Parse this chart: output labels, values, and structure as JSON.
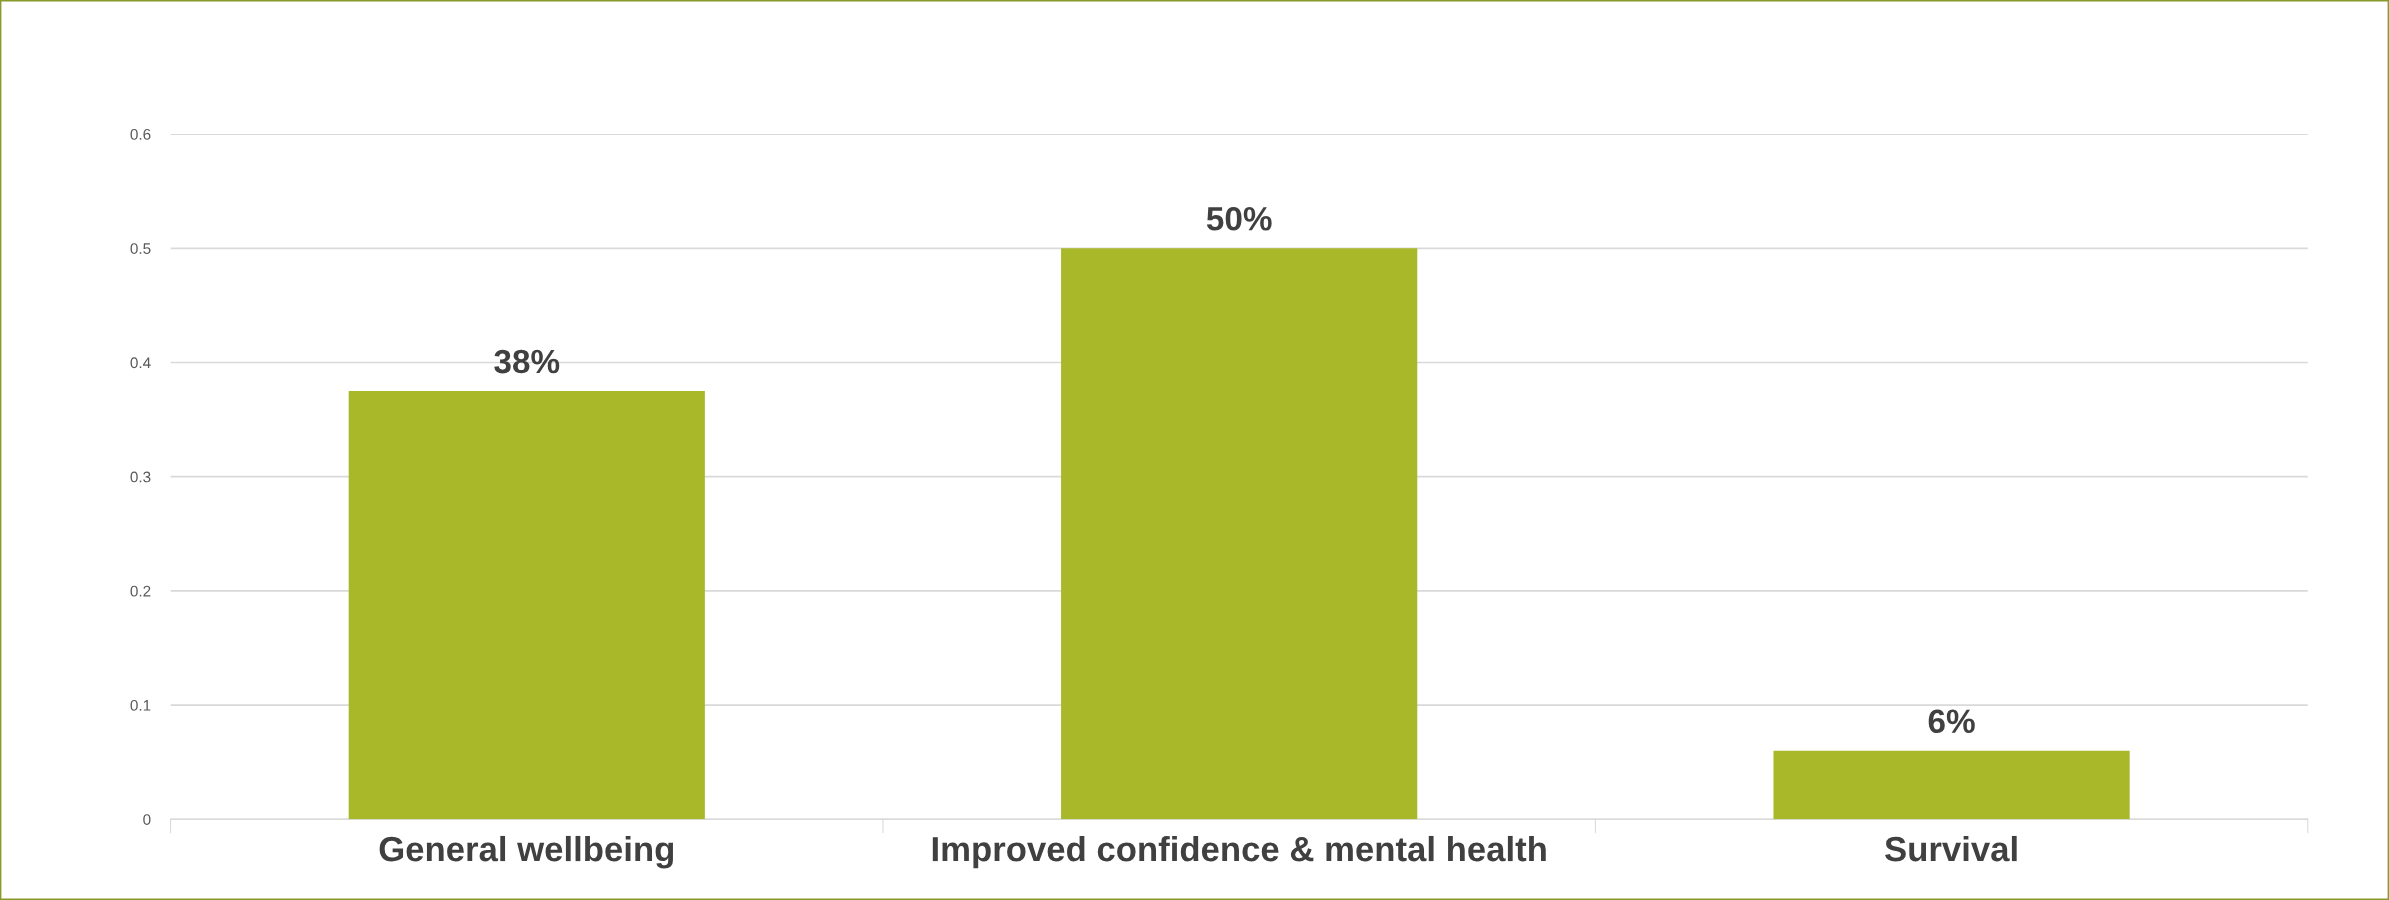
{
  "chart_data": {
    "type": "bar",
    "categories": [
      "General wellbeing",
      "Improved confidence & mental health",
      "Survival"
    ],
    "values": [
      0.375,
      0.5,
      0.06
    ],
    "value_labels": [
      "38%",
      "50%",
      "6%"
    ],
    "color": "#a8b829",
    "ylim": [
      0,
      0.6
    ],
    "yticks": [
      0,
      0.1,
      0.2,
      0.3,
      0.4,
      0.5,
      0.6
    ],
    "grid": "y"
  }
}
